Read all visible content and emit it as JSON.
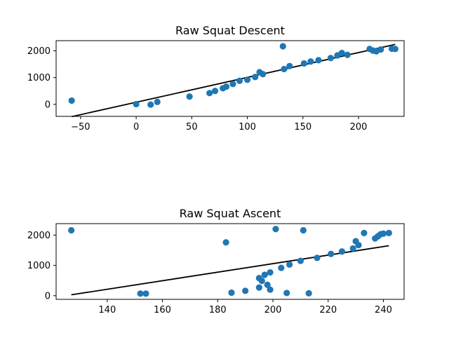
{
  "chart_data": [
    {
      "type": "scatter",
      "title": "Raw Squat Descent",
      "xlabel": "",
      "ylabel": "",
      "xlim": [
        -72,
        241
      ],
      "ylim": [
        -450,
        2380
      ],
      "xticks": [
        "−50",
        "0",
        "50",
        "100",
        "150",
        "200"
      ],
      "xtick_values": [
        -50,
        0,
        50,
        100,
        150,
        200
      ],
      "yticks": [
        "0",
        "1000",
        "2000"
      ],
      "ytick_values": [
        0,
        1000,
        2000
      ],
      "grid": false,
      "colors": {
        "points": "#1f77b4",
        "fit": "#000000"
      },
      "points": {
        "x": [
          -58,
          0,
          13,
          19,
          48,
          66,
          71,
          78,
          81,
          87,
          93,
          100,
          107,
          111,
          114,
          132,
          133,
          138,
          151,
          157,
          164,
          175,
          181,
          185,
          190,
          210,
          213,
          216,
          220,
          230,
          233
        ],
        "y": [
          140,
          10,
          -10,
          90,
          290,
          420,
          500,
          600,
          660,
          760,
          880,
          920,
          1020,
          1200,
          1130,
          2170,
          1320,
          1430,
          1530,
          1600,
          1650,
          1730,
          1830,
          1920,
          1850,
          2070,
          2010,
          1980,
          2050,
          2080,
          2070
        ]
      },
      "fit_line": {
        "x": [
          -58,
          233
        ],
        "y": [
          -460,
          2240
        ]
      }
    },
    {
      "type": "scatter",
      "title": "Raw Squat Ascent",
      "xlabel": "",
      "ylabel": "",
      "xlim": [
        121.5,
        247.5
      ],
      "ylim": [
        -120,
        2380
      ],
      "xticks": [
        "140",
        "160",
        "180",
        "200",
        "220",
        "240"
      ],
      "xtick_values": [
        140,
        160,
        180,
        200,
        220,
        240
      ],
      "yticks": [
        "0",
        "1000",
        "2000"
      ],
      "ytick_values": [
        0,
        1000,
        2000
      ],
      "grid": false,
      "colors": {
        "points": "#1f77b4",
        "fit": "#000000"
      },
      "points": {
        "x": [
          127,
          152,
          154,
          183,
          185,
          190,
          195,
          195,
          196,
          197,
          198,
          199,
          199,
          201,
          203,
          205,
          206,
          210,
          211,
          213,
          216,
          221,
          225,
          229,
          230,
          231,
          233,
          237,
          238,
          239,
          240,
          242
        ],
        "y": [
          2160,
          70,
          70,
          1760,
          100,
          160,
          270,
          580,
          490,
          690,
          360,
          770,
          200,
          2200,
          920,
          90,
          1030,
          1150,
          2160,
          80,
          1250,
          1380,
          1460,
          1560,
          1800,
          1670,
          2070,
          1890,
          1960,
          2030,
          2050,
          2070
        ]
      },
      "fit_line": {
        "x": [
          127,
          242
        ],
        "y": [
          30,
          1650
        ]
      }
    }
  ]
}
